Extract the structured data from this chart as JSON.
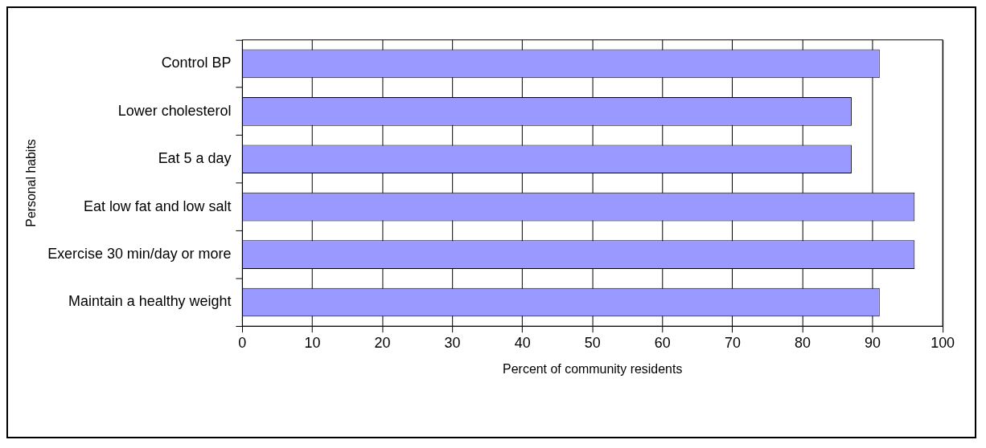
{
  "chart_data": {
    "type": "bar",
    "orientation": "horizontal",
    "categories": [
      "Control BP",
      "Lower cholesterol",
      "Eat 5 a day",
      "Eat low fat and low salt",
      "Exercise 30 min/day or more",
      "Maintain a healthy weight"
    ],
    "values": [
      91,
      87,
      87,
      96,
      96,
      91
    ],
    "color": "#9999ff",
    "xlim": [
      0,
      100
    ],
    "xticks": [
      0,
      10,
      20,
      30,
      40,
      50,
      60,
      70,
      80,
      90,
      100
    ],
    "xlabel": "Percent of community residents",
    "ylabel": "Personal habits",
    "grid": "x",
    "legend": false
  }
}
